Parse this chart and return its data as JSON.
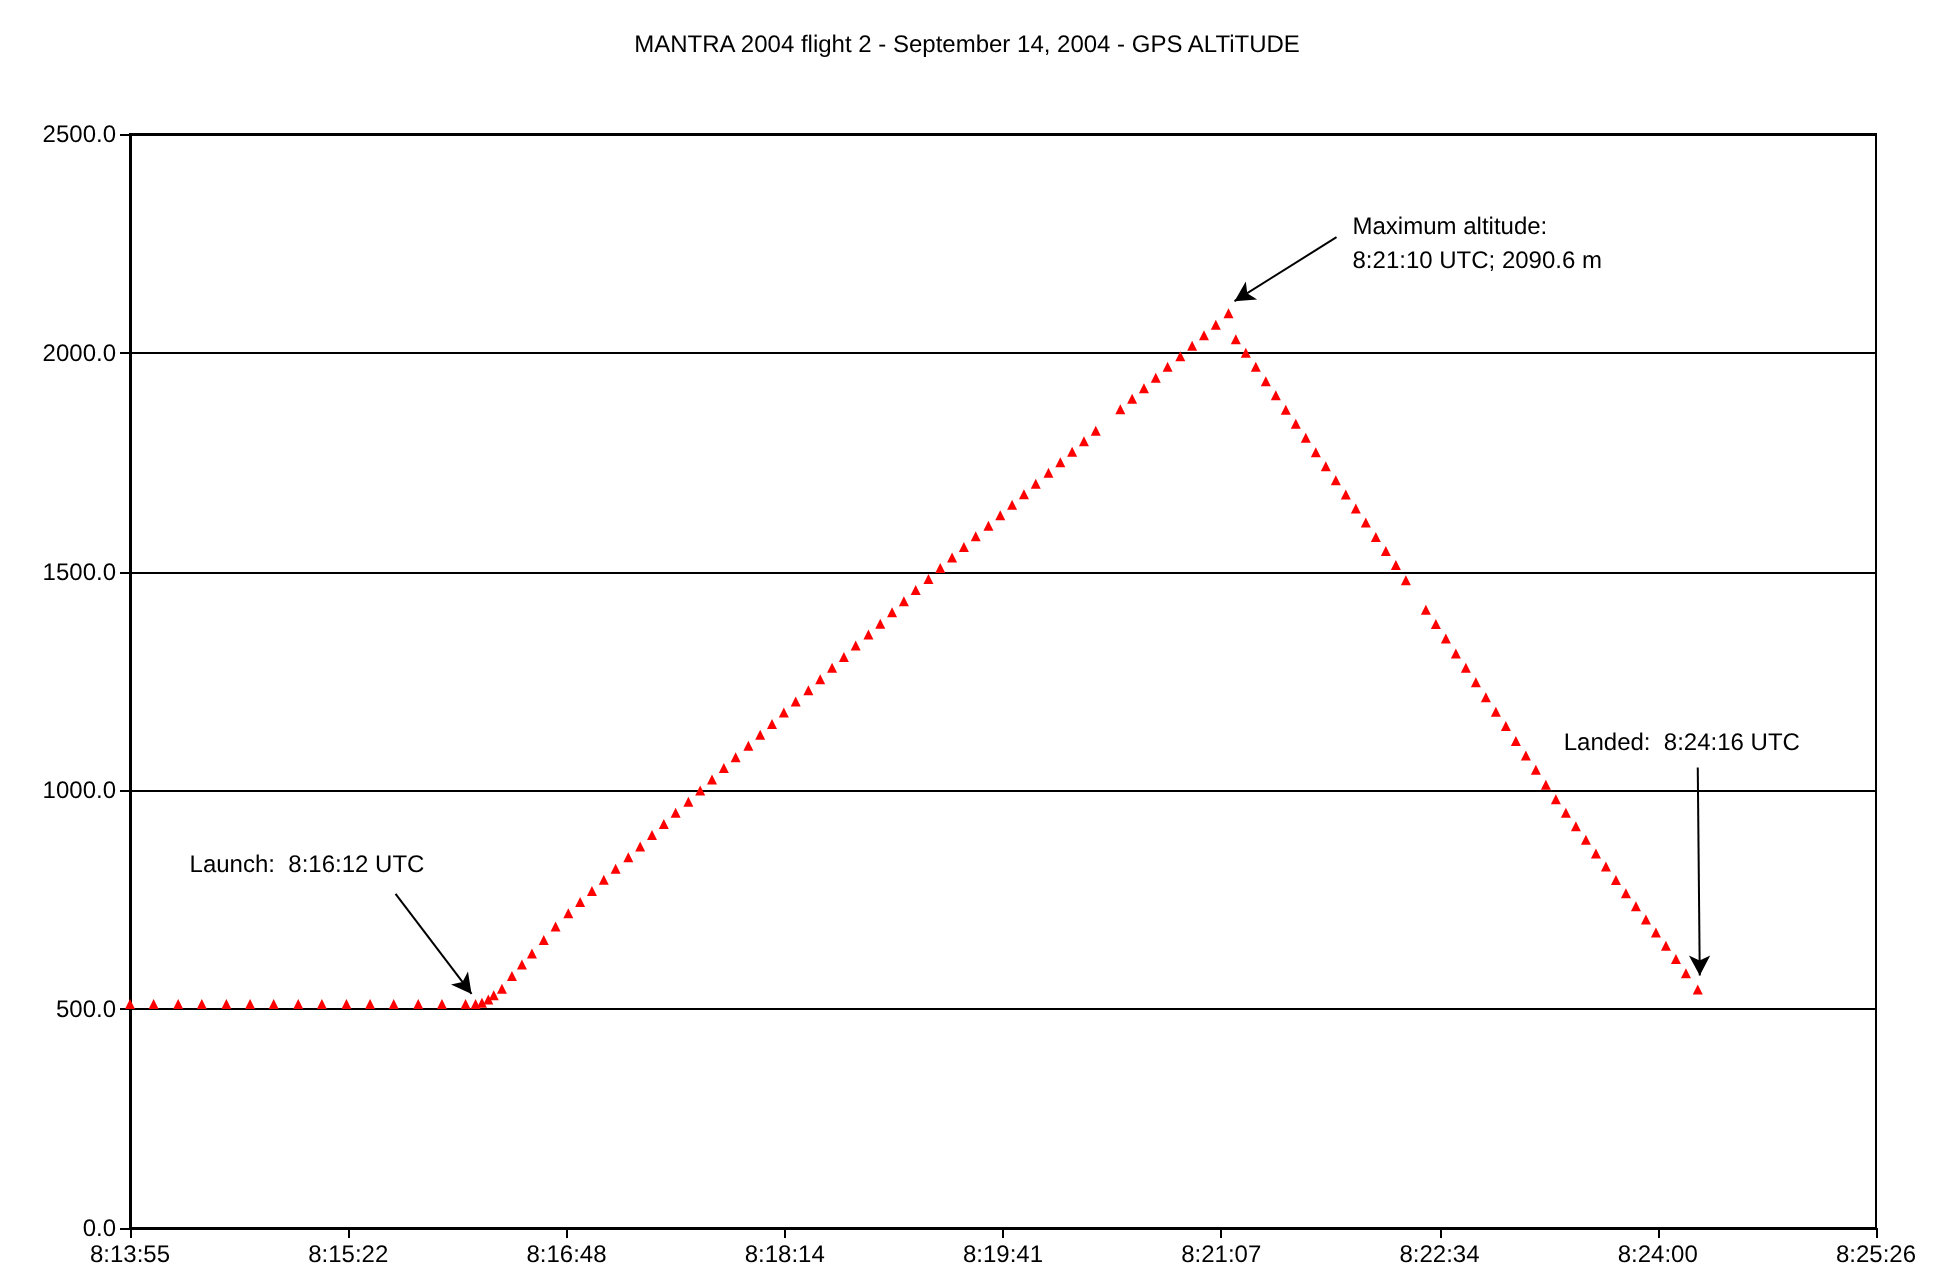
{
  "chart_data": {
    "type": "scatter",
    "title": "MANTRA 2004 flight 2 - September 14, 2004 - GPS ALTiTUDE",
    "x": [
      8.232,
      8.2346,
      8.2373,
      8.2399,
      8.2426,
      8.2452,
      8.2478,
      8.2505,
      8.2531,
      8.2558,
      8.2584,
      8.261,
      8.2637,
      8.2663,
      8.2689,
      8.27,
      8.2707,
      8.2714,
      8.272,
      8.2729,
      8.274,
      8.2751,
      8.2762,
      8.2775,
      8.2788,
      8.2802,
      8.2815,
      8.2828,
      8.2841,
      8.2854,
      8.2868,
      8.2881,
      8.2894,
      8.2907,
      8.292,
      8.2934,
      8.2947,
      8.296,
      8.2973,
      8.2986,
      8.3,
      8.3013,
      8.3026,
      8.3039,
      8.3052,
      8.3066,
      8.3079,
      8.3092,
      8.3105,
      8.3118,
      8.3132,
      8.3145,
      8.3158,
      8.3171,
      8.3184,
      8.3198,
      8.3211,
      8.3224,
      8.3237,
      8.325,
      8.3264,
      8.3277,
      8.329,
      8.3303,
      8.3316,
      8.333,
      8.3343,
      8.3356,
      8.3369,
      8.3382,
      8.3409,
      8.3422,
      8.3435,
      8.3448,
      8.3461,
      8.3475,
      8.3488,
      8.3501,
      8.3514,
      8.3528,
      8.3536,
      8.3547,
      8.3558,
      8.3569,
      8.358,
      8.3591,
      8.3602,
      8.3613,
      8.3624,
      8.3635,
      8.3646,
      8.3657,
      8.3668,
      8.3679,
      8.369,
      8.3701,
      8.3712,
      8.3723,
      8.3745,
      8.3756,
      8.3767,
      8.3778,
      8.3789,
      8.38,
      8.3811,
      8.3822,
      8.3833,
      8.3844,
      8.3855,
      8.3866,
      8.3877,
      8.3888,
      8.3899,
      8.391,
      8.3921,
      8.3932,
      8.3943,
      8.3954,
      8.3965,
      8.3976,
      8.3987,
      8.3998,
      8.4009,
      8.402,
      8.4031,
      8.4044
    ],
    "values": [
      512,
      512,
      512,
      512,
      512,
      512,
      512,
      512,
      512,
      512,
      512,
      512,
      512,
      512,
      512,
      512,
      515,
      522,
      532,
      547,
      576,
      602,
      627,
      658,
      689,
      719,
      745,
      770,
      796,
      821,
      847,
      872,
      898,
      923,
      949,
      974,
      1000,
      1025,
      1051,
      1076,
      1102,
      1127,
      1152,
      1178,
      1203,
      1229,
      1254,
      1280,
      1305,
      1331,
      1356,
      1381,
      1407,
      1432,
      1458,
      1483,
      1508,
      1532,
      1556,
      1581,
      1605,
      1629,
      1653,
      1677,
      1701,
      1726,
      1750,
      1774,
      1798,
      1822,
      1871,
      1895,
      1919,
      1943,
      1968,
      1992,
      2016,
      2040,
      2064,
      2090.6,
      2031,
      2000,
      1968,
      1935,
      1903,
      1870,
      1838,
      1806,
      1773,
      1741,
      1709,
      1676,
      1644,
      1612,
      1579,
      1547,
      1515,
      1480,
      1413,
      1380,
      1347,
      1313,
      1280,
      1247,
      1213,
      1180,
      1147,
      1113,
      1080,
      1047,
      1013,
      980,
      949,
      918,
      887,
      856,
      826,
      795,
      765,
      735,
      705,
      675,
      645,
      615,
      582,
      545
    ],
    "color": "#ff0000",
    "marker": "triangle",
    "xlim": [
      8.232,
      8.424
    ],
    "xticks": [
      {
        "value": 8.232,
        "label": "8:13:55"
      },
      {
        "value": 8.256,
        "label": "8:15:22"
      },
      {
        "value": 8.28,
        "label": "8:16:48"
      },
      {
        "value": 8.304,
        "label": "8:18:14"
      },
      {
        "value": 8.328,
        "label": "8:19:41"
      },
      {
        "value": 8.352,
        "label": "8:21:07"
      },
      {
        "value": 8.376,
        "label": "8:22:34"
      },
      {
        "value": 8.4,
        "label": "8:24:00"
      },
      {
        "value": 8.424,
        "label": "8:25:26"
      }
    ],
    "ylim": [
      0,
      2500
    ],
    "yticks": [
      {
        "value": 0,
        "label": "0.0"
      },
      {
        "value": 500,
        "label": "500.0"
      },
      {
        "value": 1000,
        "label": "1000.0"
      },
      {
        "value": 1500,
        "label": "1500.0"
      },
      {
        "value": 2000,
        "label": "2000.0"
      },
      {
        "value": 2500,
        "label": "2500.0"
      }
    ],
    "grid": "y",
    "annotations": [
      {
        "text": "Maximum altitude:\n8:21:10 UTC; 2090.6 m",
        "x": 8.3528,
        "y": 2090.6
      },
      {
        "text": "Launch:  8:16:12 UTC",
        "x": 8.27,
        "y": 512
      },
      {
        "text": "Landed:  8:24:16 UTC",
        "x": 8.4044,
        "y": 545
      }
    ]
  }
}
